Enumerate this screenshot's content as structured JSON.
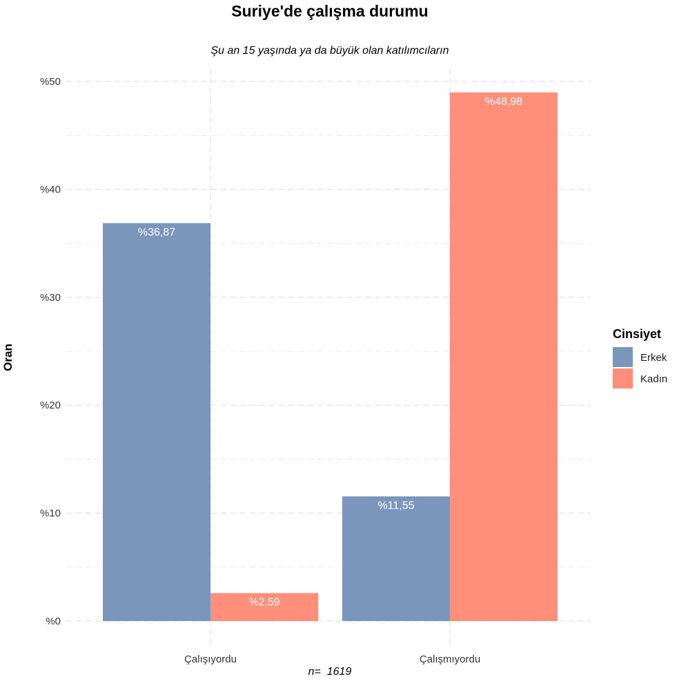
{
  "chart_data": {
    "type": "bar",
    "title": "Suriye'de çalışma durumu",
    "subtitle": "Şu an 15 yaşında ya da büyük olan katılımcıların",
    "xlabel": "",
    "ylabel": "Oran",
    "caption": "n=  1619",
    "categories": [
      "Çalışıyordu",
      "Çalışmıyordu"
    ],
    "series": [
      {
        "name": "Erkek",
        "color": "#7b96bb",
        "values": [
          36.87,
          11.55
        ],
        "labels": [
          "%36,87",
          "%11,55"
        ]
      },
      {
        "name": "Kadın",
        "color": "#ff8f7b",
        "values": [
          2.59,
          48.98
        ],
        "labels": [
          "%2,59",
          "%48,98"
        ]
      }
    ],
    "ylim": [
      0,
      50
    ],
    "yticks": [
      {
        "value": 0,
        "label": "%0"
      },
      {
        "value": 10,
        "label": "%10"
      },
      {
        "value": 20,
        "label": "%20"
      },
      {
        "value": 30,
        "label": "%30"
      },
      {
        "value": 40,
        "label": "%40"
      },
      {
        "value": 50,
        "label": "%50"
      }
    ],
    "grid": true,
    "legend": {
      "title": "Cinsiyet",
      "position": "right"
    }
  }
}
